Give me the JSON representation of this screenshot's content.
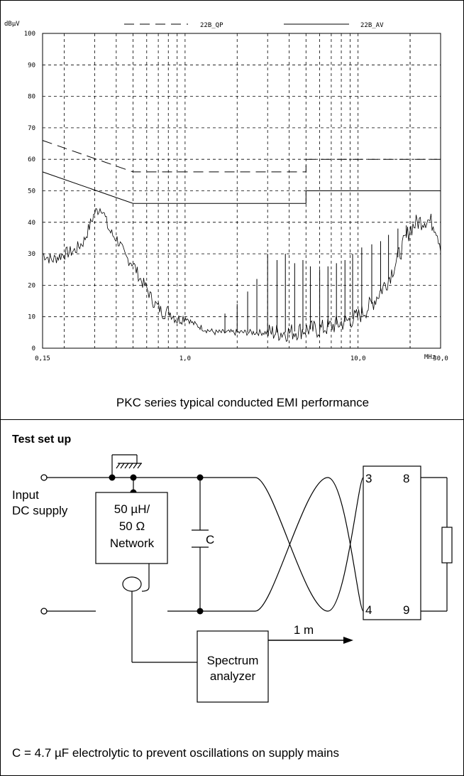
{
  "chart_data": {
    "type": "line",
    "ylabel": "dBµV",
    "xunit": "MHz",
    "x_scale": "log",
    "xlim": [
      0.15,
      30
    ],
    "ylim": [
      0,
      100
    ],
    "grid": true,
    "legend_placement": "top",
    "x_tick_labels": [
      {
        "value": 0.15,
        "label": "0,15"
      },
      {
        "value": 1,
        "label": "1,0"
      },
      {
        "value": 10,
        "label": "10,0"
      },
      {
        "value": 30,
        "label": "30,0"
      }
    ],
    "y_ticks": [
      0,
      10,
      20,
      30,
      40,
      50,
      60,
      70,
      80,
      90,
      100
    ],
    "y_tick_labels": [
      "0",
      "10",
      "20",
      "30",
      "40",
      "50",
      "60",
      "70",
      "80",
      "90",
      "100"
    ],
    "legend": [
      {
        "label": "22B_QP",
        "style": "dashed"
      },
      {
        "label": "22B_AV",
        "style": "solid"
      }
    ],
    "series": [
      {
        "name": "22B_QP",
        "style": "dashed",
        "x": [
          0.15,
          0.5,
          0.5,
          5,
          5,
          30
        ],
        "y": [
          66,
          56,
          56,
          56,
          60,
          60
        ]
      },
      {
        "name": "22B_AV",
        "style": "solid",
        "x": [
          0.15,
          0.5,
          0.5,
          5,
          5,
          30
        ],
        "y": [
          56,
          46,
          46,
          46,
          50,
          50
        ]
      },
      {
        "style": "measured",
        "x": [
          0.15,
          0.17,
          0.2,
          0.23,
          0.26,
          0.3,
          0.33,
          0.36,
          0.38,
          0.4,
          0.42,
          0.45,
          0.5,
          0.55,
          0.6,
          0.65,
          0.7,
          0.75,
          0.8,
          0.9,
          1.0,
          1.1,
          1.2,
          1.3,
          1.5,
          1.8,
          2.0,
          2.5,
          3.0,
          4.0,
          5.0,
          6.0,
          7.0,
          8.0,
          9.0,
          10.0,
          12.0,
          15.0,
          18.0,
          20.0,
          22.0,
          25.0,
          28.0,
          30.0
        ],
        "y": [
          30,
          28,
          30,
          31,
          34,
          43,
          45,
          38,
          36,
          35,
          33,
          29,
          27,
          22,
          19,
          15,
          13,
          11,
          12,
          9,
          10,
          8,
          7,
          6,
          5,
          5,
          5,
          5,
          5,
          5,
          6,
          6,
          7,
          8,
          9,
          10,
          14,
          22,
          32,
          38,
          40,
          41,
          39,
          33
        ]
      }
    ],
    "spikes": {
      "x": [
        1.7,
        2.0,
        2.3,
        2.6,
        3.0,
        3.4,
        3.8,
        4.3,
        4.8,
        5.3,
        6.0,
        6.7,
        7.5,
        8.4,
        9.3,
        10.5,
        12.0,
        13.5,
        15.0,
        17.0,
        19.0
      ],
      "y": [
        11,
        14,
        18,
        22,
        30,
        28,
        30,
        27,
        28,
        26,
        25,
        26,
        27,
        28,
        30,
        32,
        33,
        34,
        36,
        38,
        39
      ]
    },
    "caption": "PKC series typical conducted EMI performance"
  },
  "setup": {
    "title": "Test set up",
    "input_label_1": "Input",
    "input_label_2": "DC supply",
    "network_1": "50 µH/",
    "network_2": "50 Ω",
    "network_3": "Network",
    "capacitor": "C",
    "distance": "1 m",
    "pin_3": "3",
    "pin_8": "8",
    "pin_4": "4",
    "pin_9": "9",
    "analyzer_1": "Spectrum",
    "analyzer_2": "analyzer",
    "note": "C = 4.7 µF electrolytic to prevent oscillations on supply mains"
  }
}
